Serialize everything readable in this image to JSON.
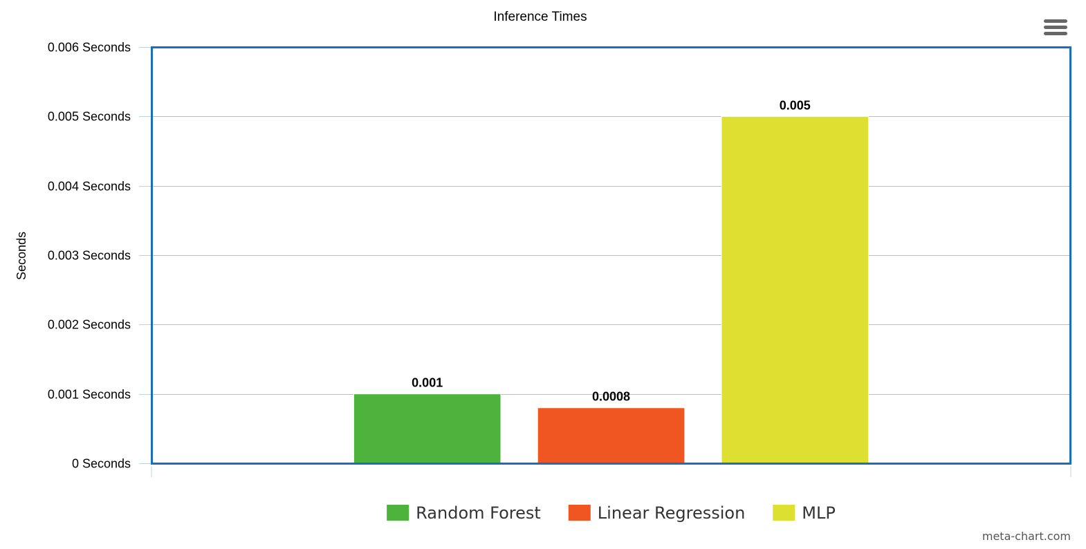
{
  "chart_data": {
    "type": "bar",
    "title": "Inference Times",
    "ylabel": "Seconds",
    "xlabel": "",
    "ylim": [
      0,
      0.006
    ],
    "yticks": [
      0,
      0.001,
      0.002,
      0.003,
      0.004,
      0.005,
      0.006
    ],
    "ytick_labels": [
      "0 Seconds",
      "0.001 Seconds",
      "0.002 Seconds",
      "0.003 Seconds",
      "0.004 Seconds",
      "0.005 Seconds",
      "0.006 Seconds"
    ],
    "grid": true,
    "legend_position": "bottom-center",
    "series": [
      {
        "name": "Random Forest",
        "value": 0.001,
        "label": "0.001",
        "color": "#4db33d"
      },
      {
        "name": "Linear Regression",
        "value": 0.0008,
        "label": "0.0008",
        "color": "#ef5622"
      },
      {
        "name": "MLP",
        "value": 0.005,
        "label": "0.005",
        "color": "#dde031"
      }
    ]
  },
  "menu": {
    "icon": "hamburger-menu-icon"
  },
  "watermark": "meta-chart.com"
}
